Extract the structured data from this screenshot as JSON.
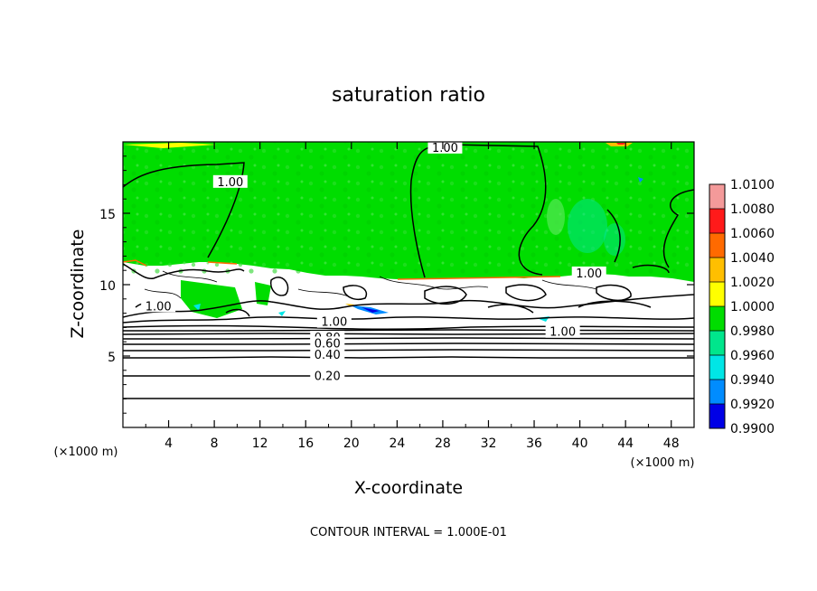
{
  "chart_data": {
    "type": "heatmap",
    "title": "saturation ratio",
    "xlabel": "X-coordinate",
    "ylabel": "Z-coordinate",
    "x_unit": "(×1000 m)",
    "footer": "CONTOUR INTERVAL = 1.000E-01",
    "xlim": [
      0,
      50
    ],
    "ylim": [
      0,
      20
    ],
    "x_ticks": [
      4,
      8,
      12,
      16,
      20,
      24,
      28,
      32,
      36,
      40,
      44,
      48
    ],
    "y_ticks": [
      5,
      10,
      15
    ],
    "colorbar": {
      "levels": [
        "1.0100",
        "1.0080",
        "1.0060",
        "1.0040",
        "1.0020",
        "1.0000",
        "0.9980",
        "0.9960",
        "0.9940",
        "0.9920",
        "0.9900"
      ],
      "colors": [
        "#f49a9a",
        "#ff1a1a",
        "#ff6a00",
        "#ffbf00",
        "#ffff00",
        "#00dd00",
        "#00e68c",
        "#00e6e6",
        "#008cff",
        "#0000e6",
        "#7a00c8"
      ]
    },
    "contour_labels": [
      {
        "text": "1.00",
        "x": 28.2,
        "z": 19.5
      },
      {
        "text": "1.00",
        "x": 9.4,
        "z": 17.1
      },
      {
        "text": "1.00",
        "x": 40.8,
        "z": 10.7
      },
      {
        "text": "1.00",
        "x": 3.1,
        "z": 8.4
      },
      {
        "text": "1.00",
        "x": 18.5,
        "z": 7.3
      },
      {
        "text": "1.00",
        "x": 38.5,
        "z": 6.6
      },
      {
        "text": "0.80",
        "x": 17.9,
        "z": 6.2
      },
      {
        "text": "0.60",
        "x": 17.9,
        "z": 5.8
      },
      {
        "text": "0.40",
        "x": 17.9,
        "z": 5.0
      },
      {
        "text": "0.20",
        "x": 17.9,
        "z": 3.5
      }
    ],
    "grid": false
  }
}
